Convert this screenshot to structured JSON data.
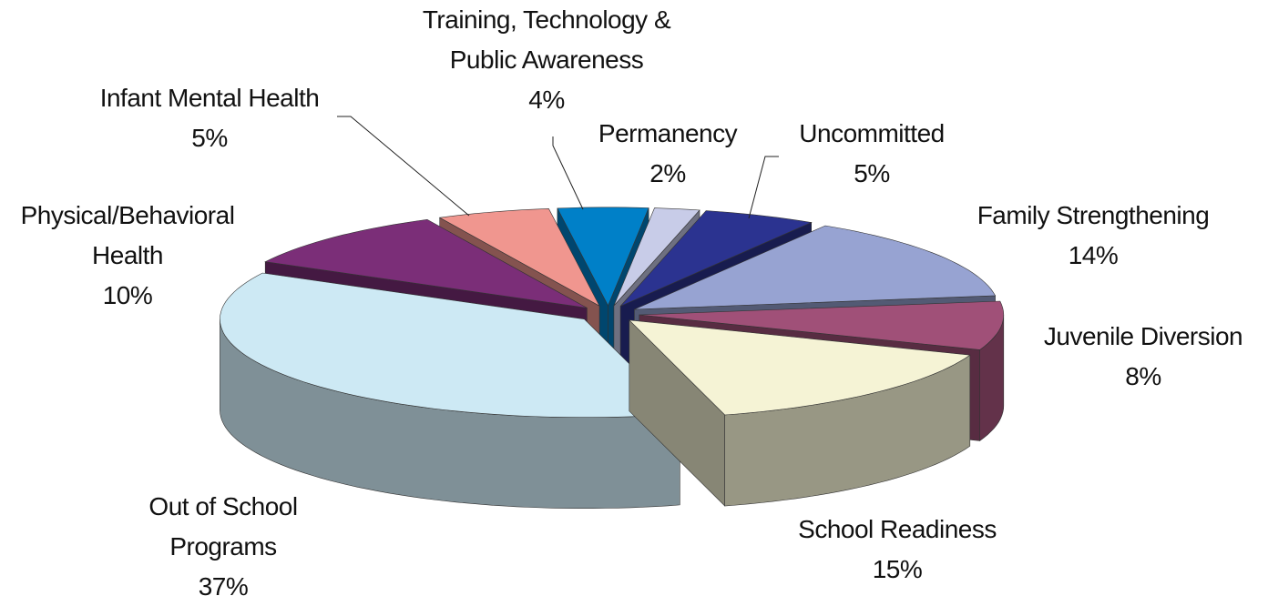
{
  "chart_data": {
    "type": "pie3d",
    "categories": [
      "Training, Technology & Public Awareness",
      "Permanency",
      "Uncommitted",
      "Family Strengthening",
      "Juvenile Diversion",
      "School Readiness",
      "Out of School Programs",
      "Physical/Behavioral Health",
      "Infant Mental Health"
    ],
    "values": [
      4,
      2,
      5,
      14,
      8,
      15,
      37,
      10,
      5
    ],
    "value_labels": [
      "4%",
      "2%",
      "5%",
      "14%",
      "8%",
      "15%",
      "37%",
      "10%",
      "5%"
    ],
    "colors": [
      "#0080c8",
      "#c8cce8",
      "#2b3390",
      "#97a3d2",
      "#a05078",
      "#f5f3d5",
      "#cde9f4",
      "#7b2e78",
      "#f0968f"
    ]
  }
}
